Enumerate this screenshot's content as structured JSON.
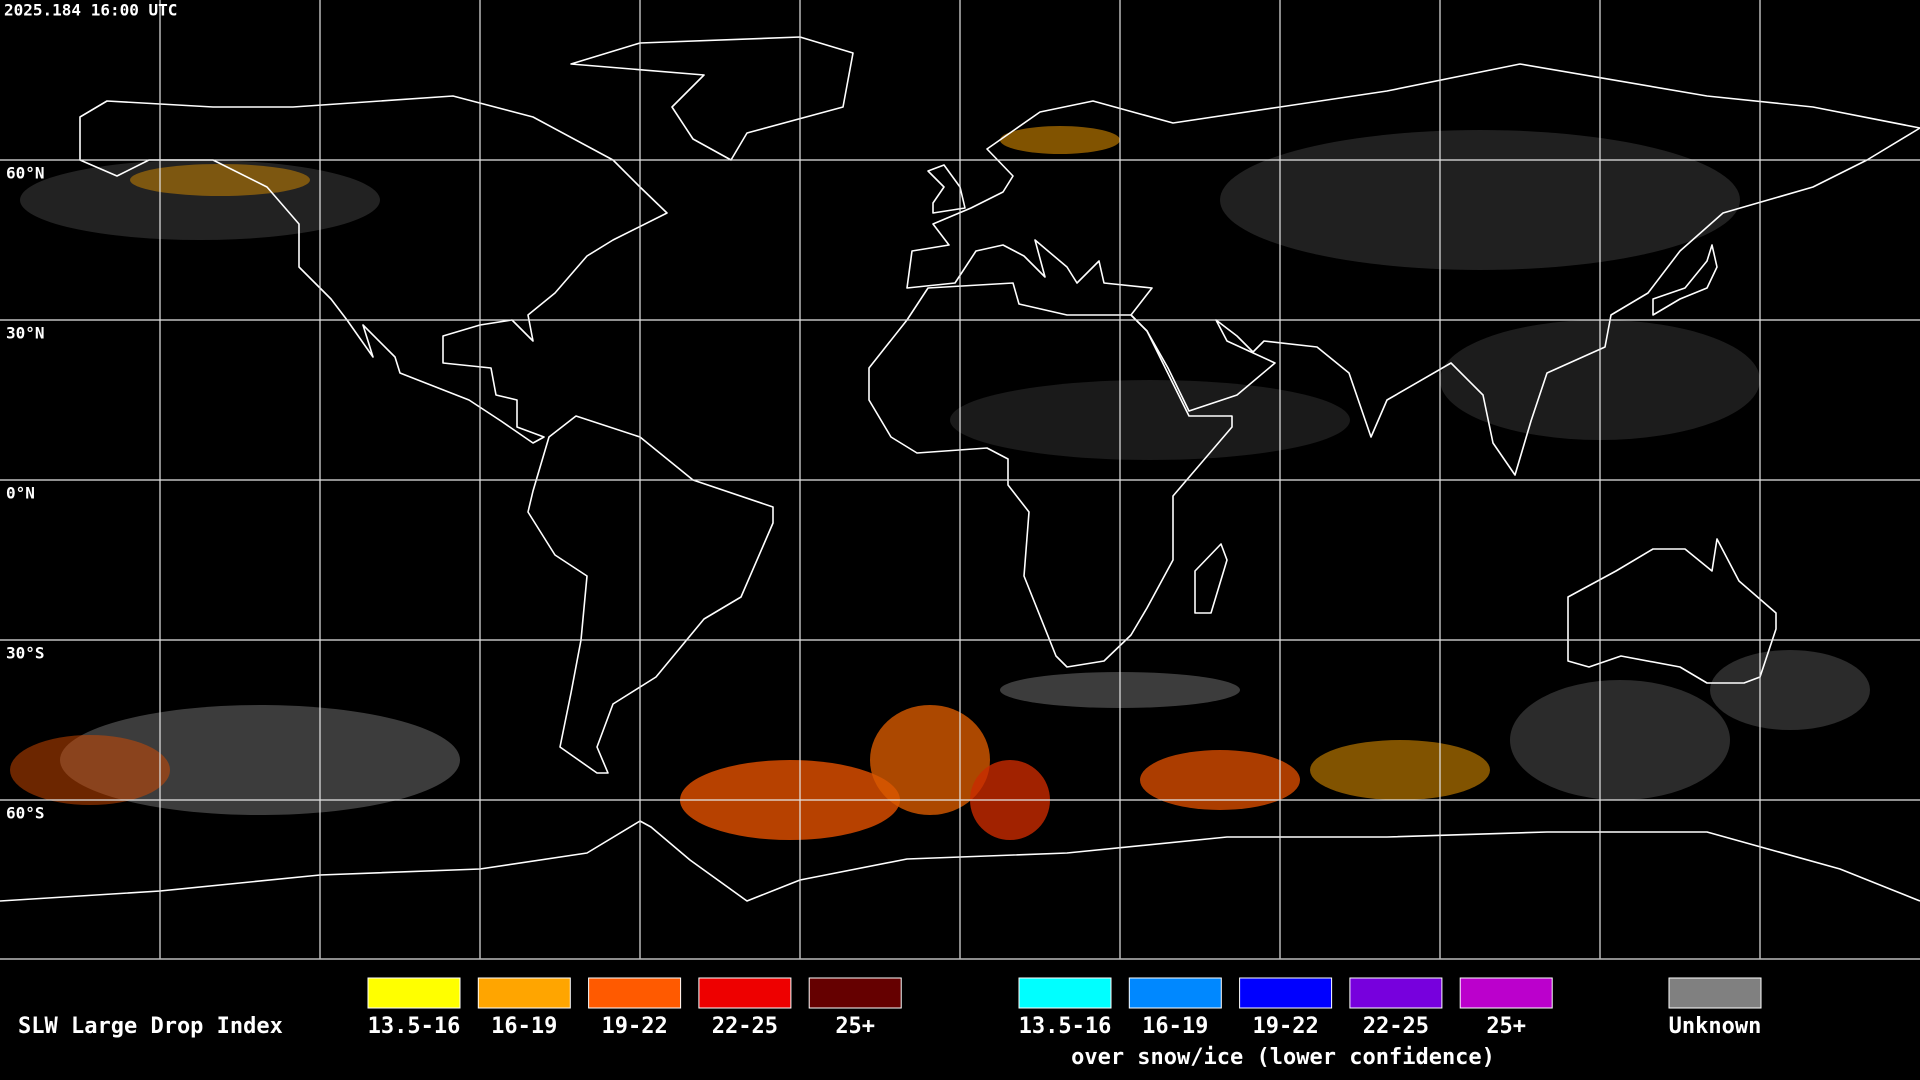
{
  "header": {
    "timestamp": "2025.184 16:00 UTC"
  },
  "grid": {
    "latitude_labels": [
      "60°N",
      "30°N",
      "0°N",
      "30°S",
      "60°S"
    ]
  },
  "legend": {
    "title": "SLW Large Drop Index",
    "entries": [
      {
        "label": "13.5-16",
        "color": "#ffff00"
      },
      {
        "label": "16-19",
        "color": "#ffa500"
      },
      {
        "label": "19-22",
        "color": "#ff5a00"
      },
      {
        "label": "22-25",
        "color": "#ee0000"
      },
      {
        "label": "25+",
        "color": "#650000"
      }
    ],
    "snow_entries": [
      {
        "label": "13.5-16",
        "color": "#00ffff"
      },
      {
        "label": "16-19",
        "color": "#0088ff"
      },
      {
        "label": "19-22",
        "color": "#0000ff"
      },
      {
        "label": "22-25",
        "color": "#7700dd"
      },
      {
        "label": "25+",
        "color": "#bb00cc"
      }
    ],
    "snow_note": "over snow/ice (lower confidence)",
    "unknown": {
      "label": "Unknown",
      "color": "#808080"
    }
  }
}
